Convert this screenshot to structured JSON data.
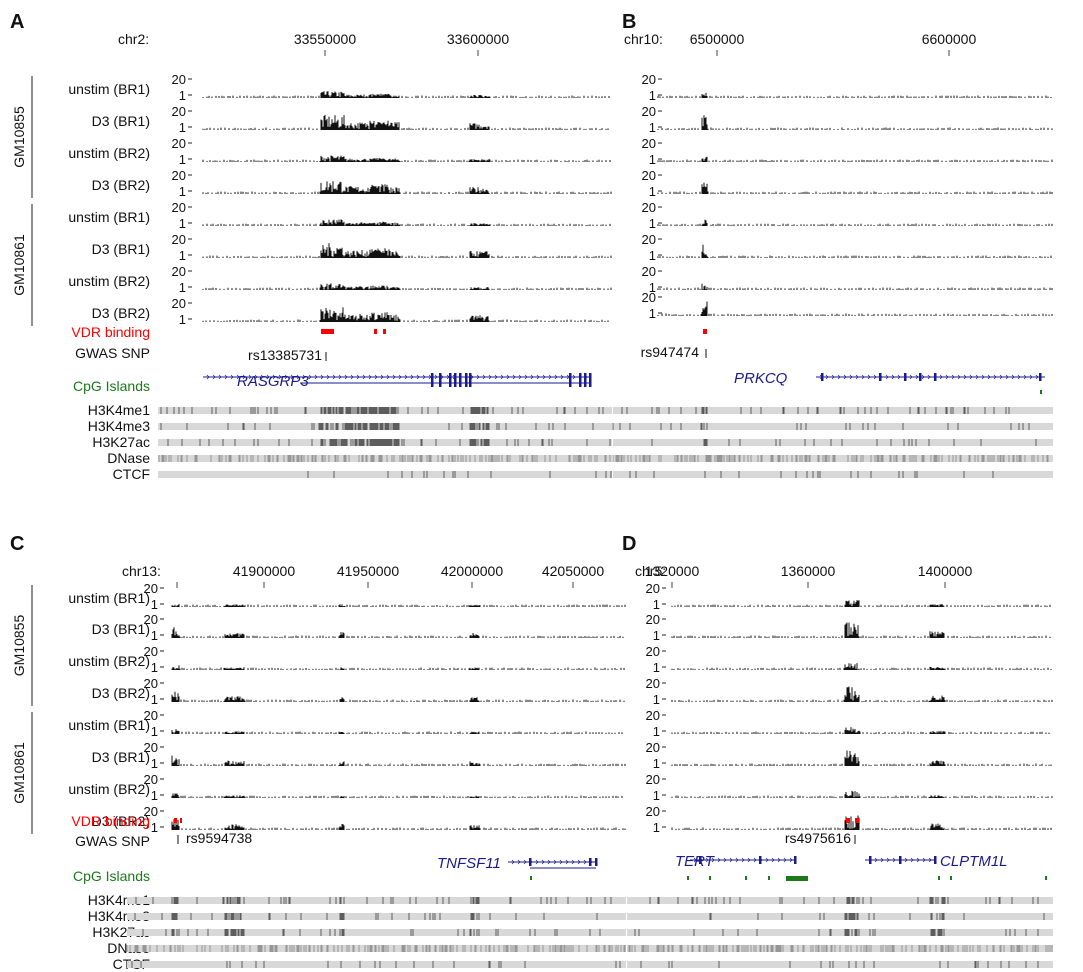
{
  "figure": {
    "track_rows": [
      "unstim (BR1)",
      "D3 (BR1)",
      "unstim (BR2)",
      "D3 (BR2)",
      "unstim (BR1)",
      "D3 (BR1)",
      "unstim (BR2)",
      "D3 (BR2)"
    ],
    "cell_lines": [
      "GM10855",
      "GM10861"
    ],
    "y_ticks": [
      "20",
      "1"
    ],
    "vdr_label": "VDR binding",
    "gwas_label": "GWAS SNP",
    "cpg_label": "CpG Islands",
    "chromatin_tracks": [
      "H3K4me1",
      "H3K4me3",
      "H3K27ac",
      "DNase",
      "CTCF"
    ],
    "colors": {
      "vdr": "#ff0000",
      "cpg": "#1a7a1a",
      "gene": "#1a1a8c",
      "signal": "#111111",
      "band": "#d8d8d8"
    }
  },
  "panels": [
    {
      "letter": "A",
      "chrom": "chr2:",
      "ticks": [
        "33550000",
        "33600000"
      ],
      "genes": [
        {
          "name": "RASGRP3"
        }
      ],
      "snp": "rs13385731",
      "show_labels": true
    },
    {
      "letter": "B",
      "chrom": "chr10:",
      "ticks": [
        "6500000",
        "6600000"
      ],
      "genes": [
        {
          "name": "PRKCQ"
        }
      ],
      "snp": "rs947474",
      "show_labels": false
    },
    {
      "letter": "C",
      "chrom": "chr13:",
      "ticks": [
        "41900000",
        "41950000",
        "42000000",
        "42050000"
      ],
      "genes": [
        {
          "name": "TNFSF11"
        }
      ],
      "snp": "rs9594738",
      "show_labels": true
    },
    {
      "letter": "D",
      "chrom": "chr5:",
      "ticks": [
        "1320000",
        "1360000",
        "1400000"
      ],
      "genes": [
        {
          "name": "TERT"
        },
        {
          "name": "CLPTM1L"
        }
      ],
      "snp": "rs4975616",
      "show_labels": false
    }
  ]
}
